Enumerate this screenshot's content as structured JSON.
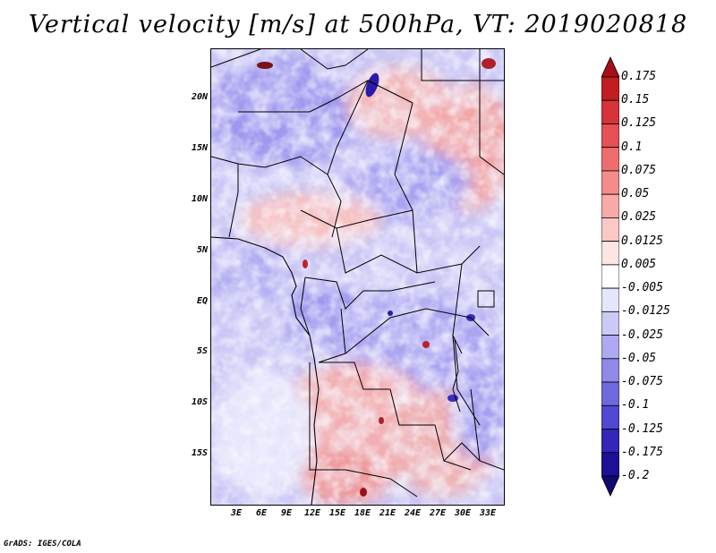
{
  "title": "Vertical velocity [m/s] at 500hPa, VT: 2019020818",
  "credit": "GrADS: IGES/COLA",
  "map": {
    "lat_labels": [
      "20N",
      "15N",
      "10N",
      "5N",
      "EQ",
      "5S",
      "10S",
      "15S"
    ],
    "lon_labels": [
      "3E",
      "6E",
      "9E",
      "12E",
      "15E",
      "18E",
      "21E",
      "24E",
      "27E",
      "30E",
      "33E"
    ]
  },
  "colorbar": {
    "labels": [
      "0.175",
      "0.15",
      "0.125",
      "0.1",
      "0.075",
      "0.05",
      "0.025",
      "0.0125",
      "0.005",
      "-0.005",
      "-0.0125",
      "-0.025",
      "-0.05",
      "-0.075",
      "-0.1",
      "-0.125",
      "-0.175",
      "-0.2"
    ],
    "colors": [
      "#a50f15",
      "#c01e22",
      "#d6333a",
      "#e45055",
      "#ee6e70",
      "#f48c8c",
      "#f8aaa8",
      "#fbc8c6",
      "#fde5e3",
      "#ffffff",
      "#e5e5fb",
      "#cbc9f6",
      "#aea9f0",
      "#8f89ea",
      "#6f69e0",
      "#5048d2",
      "#3426b8",
      "#1e0f96",
      "#0f0a70"
    ]
  },
  "colors": {
    "positive": "#e53535",
    "negative": "#3f2fd8",
    "background": "#ffffff"
  }
}
